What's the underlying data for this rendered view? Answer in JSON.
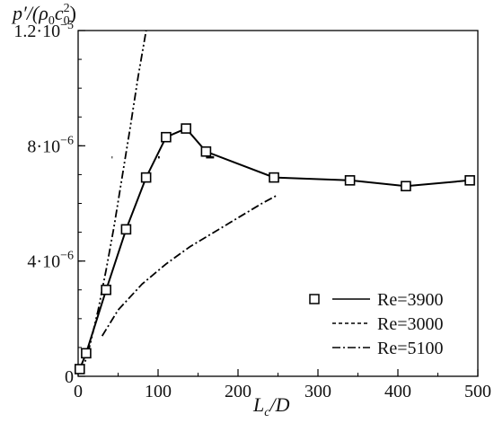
{
  "chart_data": {
    "type": "line",
    "ylabel_base": "p′/(ρ",
    "ylabel_sub0": "0",
    "ylabel_mid": "c",
    "ylabel_sub1": "0",
    "ylabel_sup": "2",
    "ylabel_close": ")",
    "xlabel_base": "L",
    "xlabel_sub": "c",
    "xlabel_rest": "/D",
    "xlim": [
      0,
      500
    ],
    "ylim": [
      0,
      1.2e-05
    ],
    "x_ticks": [
      {
        "value": 0,
        "label": "0"
      },
      {
        "value": 100,
        "label": "100"
      },
      {
        "value": 200,
        "label": "200"
      },
      {
        "value": 300,
        "label": "300"
      },
      {
        "value": 400,
        "label": "400"
      },
      {
        "value": 500,
        "label": "500"
      }
    ],
    "y_ticks": [
      {
        "value": 0,
        "label": "0",
        "exp": ""
      },
      {
        "value": 4e-06,
        "label": "4·10",
        "exp": "−6"
      },
      {
        "value": 8e-06,
        "label": "8·10",
        "exp": "−6"
      },
      {
        "value": 1.2e-05,
        "label": "1.2·10",
        "exp": "−5"
      }
    ],
    "x_minor_step": 50,
    "y_minor_step": 1e-06,
    "series": [
      {
        "name": "Re=3900",
        "style": "solid",
        "marker": "square",
        "x": [
          2,
          10,
          35,
          60,
          85,
          110,
          135,
          160,
          245,
          340,
          410,
          490
        ],
        "y": [
          2.5e-07,
          8e-07,
          3e-06,
          5.1e-06,
          6.9e-06,
          8.3e-06,
          8.6e-06,
          7.8e-06,
          6.9e-06,
          6.8e-06,
          6.6e-06,
          6.8e-06
        ]
      },
      {
        "name": "Re=3000",
        "style": "dashed",
        "marker": "none",
        "x": [
          42,
          43,
          100,
          102,
          160,
          170
        ],
        "y": [
          7.6e-06,
          7.6e-06,
          7.6e-06,
          7.6e-06,
          7.6e-06,
          7.6e-06
        ]
      },
      {
        "name": "Re=5100",
        "style": "dashdot",
        "marker": "none",
        "x": [
          30,
          50,
          80,
          110,
          140,
          170,
          200,
          230,
          250
        ],
        "y": [
          1.4e-06,
          2.3e-06,
          3.2e-06,
          3.9e-06,
          4.5e-06,
          5e-06,
          5.5e-06,
          6e-06,
          6.3e-06
        ]
      },
      {
        "name": "",
        "style": "dashdotdot",
        "marker": "none",
        "x": [
          5,
          15,
          25,
          35,
          45,
          55,
          65,
          75,
          85
        ],
        "y": [
          1.5e-07,
          1.1e-06,
          2.3e-06,
          3.7e-06,
          5.2e-06,
          6.9e-06,
          8.6e-06,
          1.04e-05,
          1.2e-05
        ]
      }
    ],
    "legend": [
      {
        "label": "Re=3900",
        "style": "solid",
        "marker": "square"
      },
      {
        "label": "Re=3000",
        "style": "dashed",
        "marker": "none"
      },
      {
        "label": "Re=5100",
        "style": "dashdot",
        "marker": "none"
      }
    ],
    "legend_position": "bottom-right",
    "grid": false
  }
}
